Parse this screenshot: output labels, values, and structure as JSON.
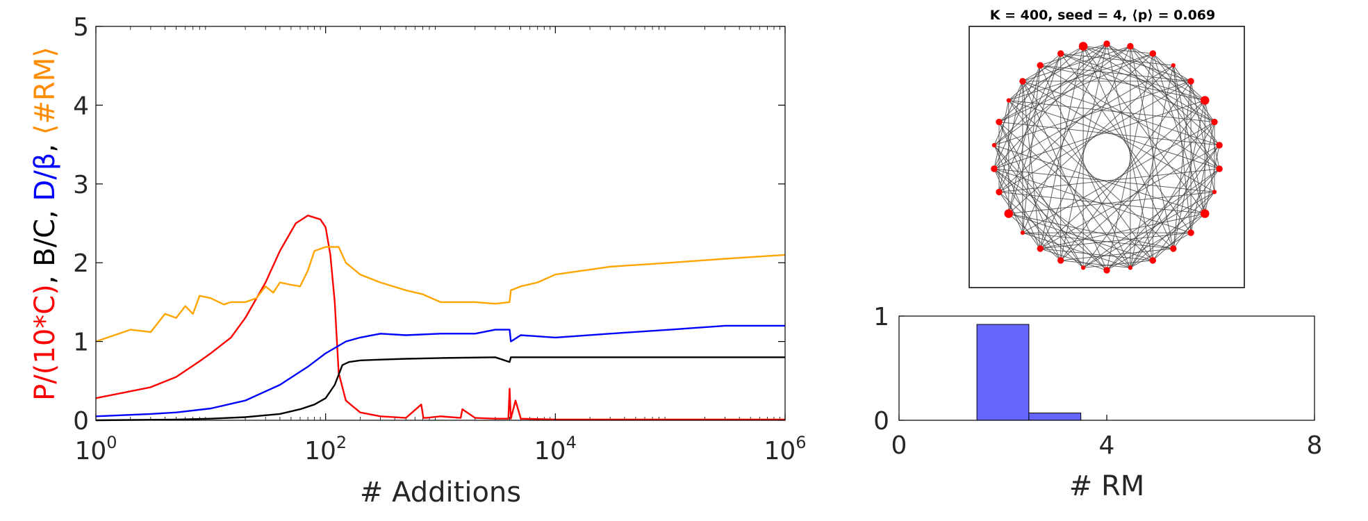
{
  "chart_data": [
    {
      "type": "line",
      "xscale": "log",
      "xlim": [
        1,
        1000000
      ],
      "ylim": [
        0,
        5
      ],
      "xlabel": "# Additions",
      "ylabel_parts": [
        {
          "text": "P/(10*C)",
          "color": "#ff0000"
        },
        {
          "text": ", B/C, ",
          "color": "#000000"
        },
        {
          "text": "D/β",
          "color": "#0000ff"
        },
        {
          "text": ", ",
          "color": "#000000"
        },
        {
          "text": "⟨#RM⟩",
          "color": "#ff8c00"
        }
      ],
      "xticks": [
        {
          "value": 1,
          "base": "10",
          "exp": "0"
        },
        {
          "value": 100,
          "base": "10",
          "exp": "2"
        },
        {
          "value": 10000,
          "base": "10",
          "exp": "4"
        },
        {
          "value": 1000000,
          "base": "10",
          "exp": "6"
        }
      ],
      "yticks": [
        "0",
        "1",
        "2",
        "3",
        "4",
        "5"
      ],
      "series": [
        {
          "key": "P/(10*C)",
          "color": "#ff0000",
          "x": [
            1,
            3,
            5,
            8,
            10,
            15,
            20,
            30,
            40,
            55,
            70,
            90,
            100,
            110,
            120,
            130,
            150,
            200,
            300,
            500,
            680,
            710,
            750,
            1000,
            1500,
            1550,
            2000,
            3000,
            3900,
            4000,
            4100,
            4500,
            5000,
            10000,
            100000,
            1000000
          ],
          "y": [
            0.28,
            0.42,
            0.55,
            0.75,
            0.85,
            1.05,
            1.3,
            1.75,
            2.15,
            2.5,
            2.6,
            2.55,
            2.45,
            2.1,
            1.5,
            0.6,
            0.25,
            0.1,
            0.05,
            0.03,
            0.2,
            0.03,
            0.03,
            0.05,
            0.03,
            0.14,
            0.03,
            0.02,
            0.02,
            0.4,
            0.02,
            0.25,
            0.02,
            0.01,
            0.01,
            0.01
          ]
        },
        {
          "key": "B/C",
          "color": "#000000",
          "x": [
            1,
            5,
            10,
            20,
            40,
            60,
            80,
            100,
            120,
            140,
            160,
            200,
            300,
            500,
            1000,
            3000,
            4000,
            4100,
            10000,
            100000,
            1000000
          ],
          "y": [
            0.0,
            0.01,
            0.02,
            0.04,
            0.08,
            0.14,
            0.2,
            0.28,
            0.45,
            0.7,
            0.74,
            0.76,
            0.77,
            0.78,
            0.79,
            0.8,
            0.74,
            0.8,
            0.8,
            0.8,
            0.8
          ]
        },
        {
          "key": "D/β",
          "color": "#0000ff",
          "x": [
            1,
            3,
            5,
            10,
            20,
            40,
            70,
            100,
            150,
            200,
            300,
            500,
            1000,
            2000,
            3000,
            4000,
            4100,
            5000,
            10000,
            30000,
            100000,
            300000,
            1000000
          ],
          "y": [
            0.05,
            0.08,
            0.1,
            0.15,
            0.25,
            0.45,
            0.68,
            0.85,
            1.0,
            1.05,
            1.1,
            1.08,
            1.1,
            1.1,
            1.15,
            1.15,
            1.0,
            1.08,
            1.05,
            1.1,
            1.15,
            1.2,
            1.2
          ]
        },
        {
          "key": "⟨#RM⟩",
          "color": "#ffa500",
          "x": [
            1,
            2,
            3,
            4,
            5,
            6,
            7,
            8,
            10,
            13,
            15,
            20,
            25,
            30,
            35,
            40,
            50,
            60,
            70,
            80,
            100,
            130,
            150,
            200,
            300,
            500,
            700,
            1000,
            2000,
            3000,
            4000,
            4100,
            5000,
            7000,
            10000,
            30000,
            100000,
            300000,
            1000000
          ],
          "y": [
            1.0,
            1.15,
            1.12,
            1.35,
            1.3,
            1.45,
            1.35,
            1.58,
            1.55,
            1.47,
            1.5,
            1.5,
            1.55,
            1.7,
            1.62,
            1.75,
            1.72,
            1.7,
            1.9,
            2.15,
            2.2,
            2.2,
            2.0,
            1.85,
            1.75,
            1.65,
            1.6,
            1.5,
            1.5,
            1.48,
            1.5,
            1.65,
            1.7,
            1.75,
            1.85,
            1.95,
            2.0,
            2.05,
            2.1
          ]
        }
      ]
    },
    {
      "type": "network",
      "title": "K = 400, seed = 4, ⟨p⟩ = 0.069",
      "node_count": 30,
      "node_color": "#ff0000",
      "edge_color": "#444444",
      "node_sizes": [
        2,
        2,
        2,
        1,
        2,
        3,
        2,
        2,
        2,
        1,
        3,
        2,
        2,
        2,
        1,
        2,
        1,
        2,
        2,
        1,
        3,
        2,
        2,
        1,
        2,
        1,
        2,
        2,
        2,
        3
      ]
    },
    {
      "type": "bar",
      "xlabel": "# RM",
      "xlim": [
        0,
        8
      ],
      "ylim": [
        0,
        1
      ],
      "xticks": [
        "0",
        "4",
        "8"
      ],
      "yticks": [
        "0",
        "1"
      ],
      "bar_color": "#6666ff",
      "bin_width": 1,
      "bins": [
        {
          "center": 2,
          "value": 0.92
        },
        {
          "center": 3,
          "value": 0.07
        }
      ]
    }
  ]
}
